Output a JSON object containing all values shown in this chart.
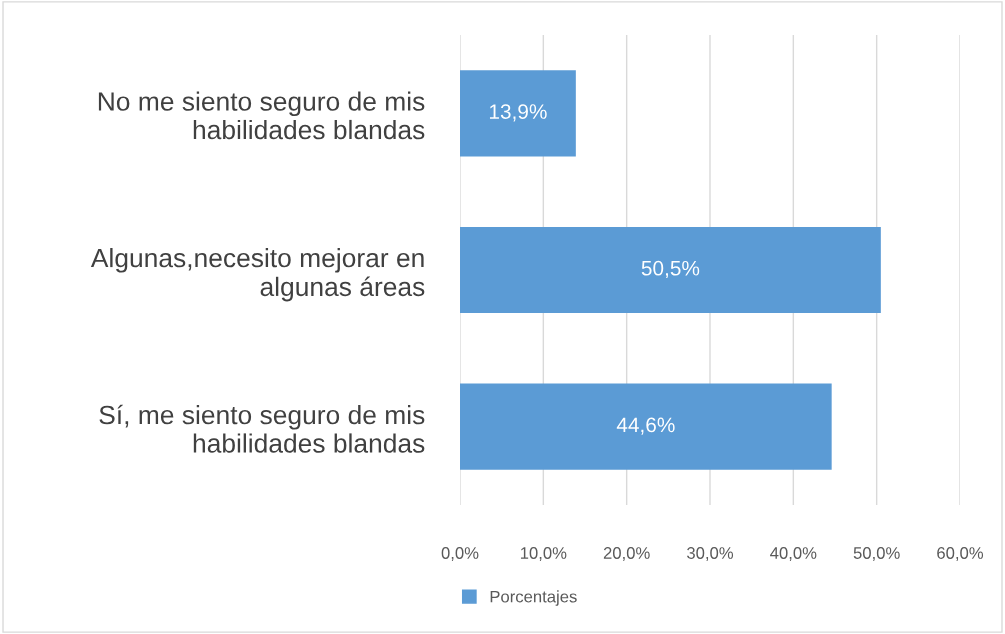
{
  "chart_data": {
    "type": "bar",
    "orientation": "horizontal",
    "categories": [
      "No me siento seguro de mis\nhabilidades blandas",
      "Algunas,necesito mejorar en\nalgunas áreas",
      "Sí, me siento seguro de mis\nhabilidades blandas"
    ],
    "series": [
      {
        "name": "Porcentajes",
        "color": "#5b9bd5",
        "values": [
          13.9,
          50.5,
          44.6
        ],
        "value_labels": [
          "13,9%",
          "50,5%",
          "44,6%"
        ]
      }
    ],
    "xlim": [
      0,
      60
    ],
    "xticks": [
      {
        "value": 0,
        "label": "0,0%"
      },
      {
        "value": 10,
        "label": "10,0%"
      },
      {
        "value": 20,
        "label": "20,0%"
      },
      {
        "value": 30,
        "label": "30,0%"
      },
      {
        "value": 40,
        "label": "40,0%"
      },
      {
        "value": 50,
        "label": "50,0%"
      },
      {
        "value": 60,
        "label": "60,0%"
      }
    ],
    "grid": "x",
    "legend": "bottom"
  }
}
